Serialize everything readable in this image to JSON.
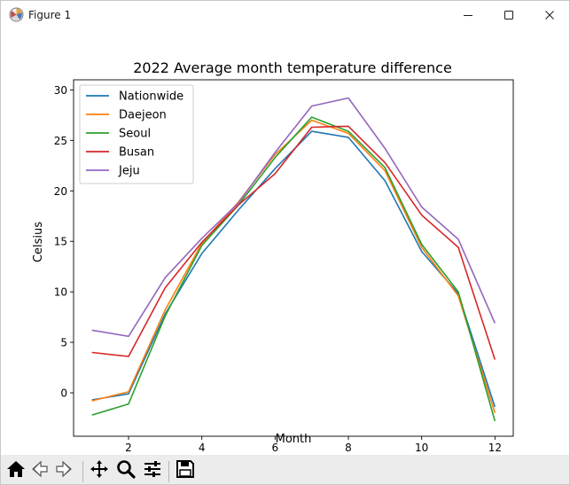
{
  "window": {
    "title": "Figure 1",
    "icons": {
      "app": "matplotlib-figure-icon",
      "minimize": "minimize-icon",
      "maximize": "maximize-icon",
      "close": "close-icon"
    }
  },
  "toolbar": {
    "buttons": [
      "home-icon",
      "back-arrow-icon",
      "forward-arrow-icon",
      "pan-icon",
      "zoom-icon",
      "configure-subplots-icon",
      "save-icon"
    ]
  },
  "chart_data": {
    "type": "line",
    "title": "2022 Average month temperature difference",
    "xlabel": "Month",
    "ylabel": "Celsius",
    "xlim": [
      0.5,
      12.5
    ],
    "ylim": [
      -4.3,
      31.0
    ],
    "xticks": [
      2,
      4,
      6,
      8,
      10,
      12
    ],
    "yticks": [
      0,
      5,
      10,
      15,
      20,
      25,
      30
    ],
    "grid": false,
    "legend_position": "upper-left",
    "x": [
      1,
      2,
      3,
      4,
      5,
      6,
      7,
      8,
      9,
      10,
      11,
      12
    ],
    "series": [
      {
        "name": "Nationwide",
        "color": "#1f77b4",
        "values": [
          -0.7,
          -0.1,
          7.8,
          13.8,
          18.1,
          22.2,
          25.9,
          25.3,
          21.0,
          14.0,
          9.8,
          -1.4
        ]
      },
      {
        "name": "Daejeon",
        "color": "#ff7f0e",
        "values": [
          -0.8,
          0.1,
          8.2,
          14.8,
          18.9,
          23.6,
          27.0,
          25.7,
          22.0,
          14.4,
          9.6,
          -2.0
        ]
      },
      {
        "name": "Seoul",
        "color": "#2ca02c",
        "values": [
          -2.2,
          -1.1,
          7.6,
          14.6,
          18.6,
          23.3,
          27.3,
          25.9,
          22.3,
          14.7,
          10.0,
          -2.8
        ]
      },
      {
        "name": "Busan",
        "color": "#d62728",
        "values": [
          4.0,
          3.6,
          10.4,
          14.9,
          18.6,
          21.7,
          26.3,
          26.4,
          22.8,
          17.6,
          14.4,
          3.3
        ]
      },
      {
        "name": "Jeju",
        "color": "#9467bd",
        "values": [
          6.2,
          5.6,
          11.4,
          15.3,
          18.8,
          23.8,
          28.4,
          29.2,
          24.2,
          18.4,
          15.2,
          6.9
        ]
      }
    ]
  }
}
